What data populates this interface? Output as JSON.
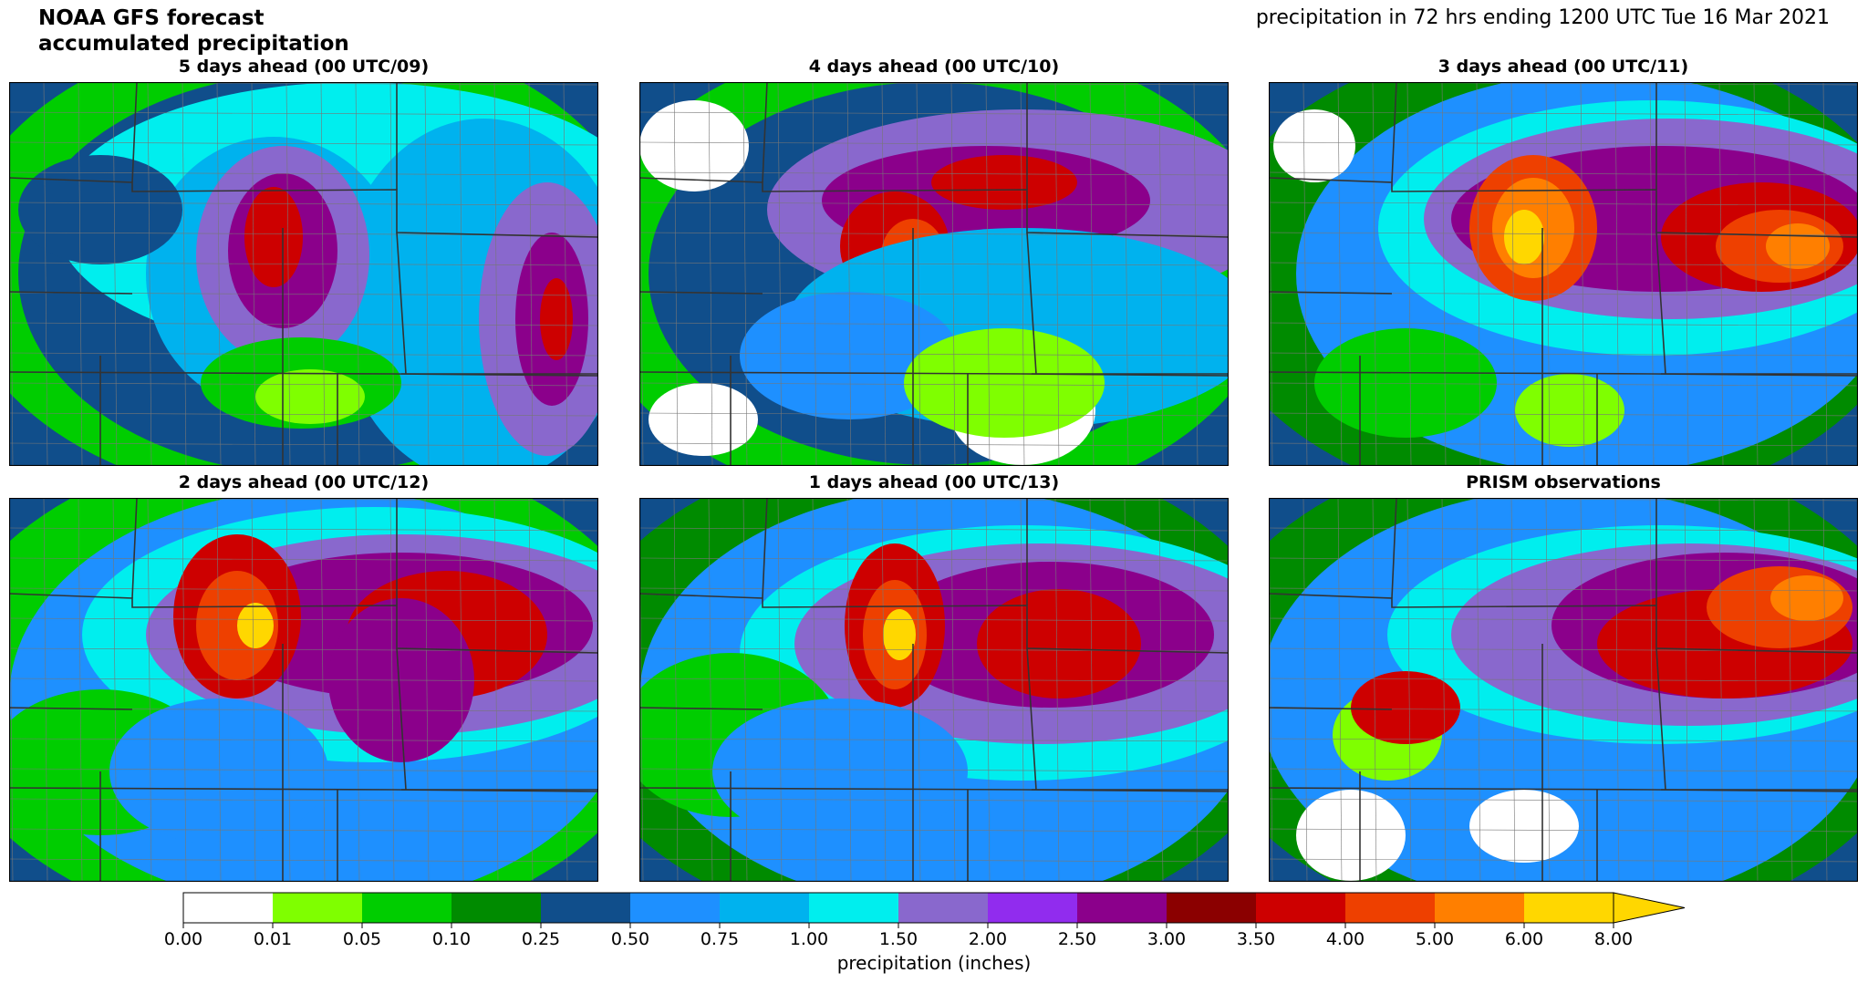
{
  "header": {
    "title_line1": "NOAA GFS forecast",
    "title_line2": "accumulated precipitation",
    "subtitle": "precipitation in 72 hrs ending 1200 UTC Tue 16 Mar 2021"
  },
  "panels": [
    {
      "title": "5 days ahead (00 UTC/09)"
    },
    {
      "title": "4 days ahead (00 UTC/10)"
    },
    {
      "title": "3 days ahead (00 UTC/11)"
    },
    {
      "title": "2 days ahead (00 UTC/12)"
    },
    {
      "title": "1 days ahead (00 UTC/13)"
    },
    {
      "title": "PRISM observations"
    }
  ],
  "colorbar": {
    "label": "precipitation (inches)",
    "ticks": [
      "0.00",
      "0.01",
      "0.05",
      "0.10",
      "0.25",
      "0.50",
      "0.75",
      "1.00",
      "1.50",
      "2.00",
      "2.50",
      "3.00",
      "3.50",
      "4.00",
      "5.00",
      "6.00",
      "8.00"
    ],
    "colors": [
      "#ffffff",
      "#7fff00",
      "#00cd00",
      "#008b00",
      "#104e8b",
      "#1e90ff",
      "#00b2ee",
      "#00eeee",
      "#8968cd",
      "#912cee",
      "#8b008b",
      "#8b0000",
      "#cd0000",
      "#ee4000",
      "#ff7f00",
      "#ffd700"
    ],
    "extend": "max"
  }
}
